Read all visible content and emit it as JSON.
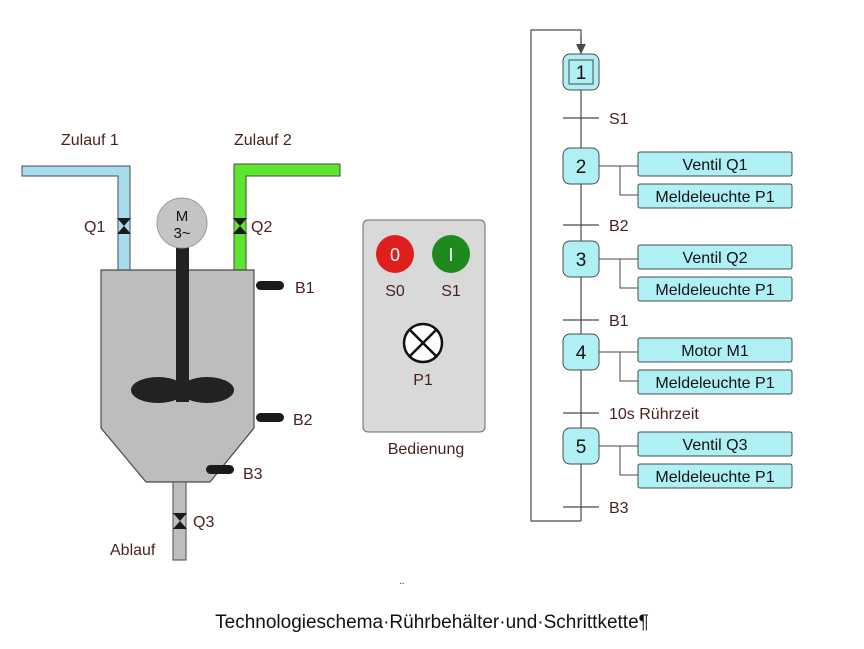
{
  "tank": {
    "inlet1_label": "Zulauf 1",
    "inlet2_label": "Zulauf 2",
    "valve_q1": "Q1",
    "valve_q2": "Q2",
    "valve_q3": "Q3",
    "motor_line1": "M",
    "motor_line2": "3~",
    "sensor_b1": "B1",
    "sensor_b2": "B2",
    "sensor_b3": "B3",
    "outlet_label": "Ablauf"
  },
  "panel": {
    "button_s0_symbol": "0",
    "button_s1_symbol": "I",
    "button_s0_label": "S0",
    "button_s1_label": "S1",
    "lamp_label": "P1",
    "caption": "Bedienung"
  },
  "sfc": {
    "steps": [
      "1",
      "2",
      "3",
      "4",
      "5"
    ],
    "transitions": [
      "S1",
      "B2",
      "B1",
      "10s Rührzeit",
      "B3"
    ],
    "actions": [
      [
        "Ventil Q1",
        "Meldeleuchte P1"
      ],
      [
        "Ventil Q2",
        "Meldeleuchte P1"
      ],
      [
        "Motor M1",
        "Meldeleuchte P1"
      ],
      [
        "Ventil Q3",
        "Meldeleuchte P1"
      ]
    ]
  },
  "colors": {
    "inlet1": "#a7dcef",
    "inlet2": "#5ce62e",
    "tank": "#bdbdbd",
    "step_fill": "#aef0f4",
    "button_red": "#e01e1e",
    "button_green": "#1e8a1e",
    "panel_bg": "#d9d9d9"
  },
  "caption_marker": "¨",
  "caption": "Technologieschema·Rührbehälter·und·Schrittkette¶"
}
